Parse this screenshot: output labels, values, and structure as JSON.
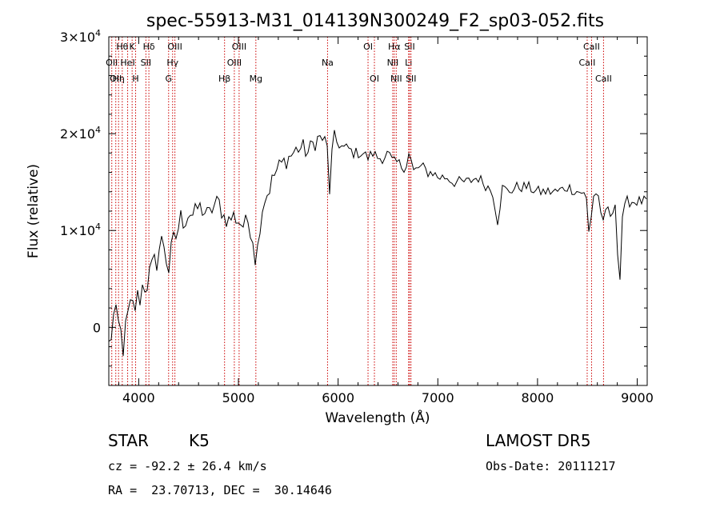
{
  "chart_data": {
    "type": "line",
    "title": "spec-55913-M31_014139N300249_F2_sp03-052.fits",
    "xlabel": "Wavelength (Å)",
    "ylabel": "Flux (relative)",
    "xlim": [
      3700,
      9100
    ],
    "ylim": [
      -6000,
      30000
    ],
    "x_ticks": [
      {
        "value": 4000,
        "label": "4000"
      },
      {
        "value": 5000,
        "label": "5000"
      },
      {
        "value": 6000,
        "label": "6000"
      },
      {
        "value": 7000,
        "label": "7000"
      },
      {
        "value": 8000,
        "label": "8000"
      },
      {
        "value": 9000,
        "label": "9000"
      }
    ],
    "y_ticks": [
      {
        "value": 0,
        "label": "0",
        "exp": ""
      },
      {
        "value": 10000,
        "label": "1×10",
        "exp": "4"
      },
      {
        "value": 20000,
        "label": "2×10",
        "exp": "4"
      },
      {
        "value": 30000,
        "label": "3×10",
        "exp": "4"
      }
    ],
    "line_color": "#000000",
    "marker_line_color": "#cc0000",
    "grid": false,
    "series": [
      {
        "x": [
          3700,
          3750,
          3800,
          3850,
          3900,
          3950,
          4000,
          4050,
          4100,
          4150,
          4200,
          4250,
          4300,
          4350,
          4400,
          4450,
          4500,
          4550,
          4600,
          4650,
          4700,
          4750,
          4800,
          4850,
          4900,
          4950,
          5000,
          5050,
          5100,
          5150,
          5180,
          5200,
          5250,
          5300,
          5350,
          5400,
          5450,
          5500,
          5550,
          5600,
          5650,
          5700,
          5750,
          5800,
          5850,
          5890,
          5910,
          5950,
          6000,
          6050,
          6100,
          6150,
          6200,
          6250,
          6300,
          6350,
          6400,
          6450,
          6500,
          6550,
          6600,
          6650,
          6700,
          6725,
          6735,
          6760,
          6800,
          6850,
          6900,
          6950,
          7000,
          7050,
          7100,
          7150,
          7200,
          7300,
          7400,
          7500,
          7550,
          7600,
          7650,
          7700,
          7800,
          7900,
          8000,
          8100,
          8200,
          8300,
          8400,
          8450,
          8500,
          8520,
          8550,
          8600,
          8620,
          8660,
          8700,
          8750,
          8780,
          8800,
          8820,
          8850,
          8900,
          8950,
          9000,
          9050
        ],
        "y": [
          -2000,
          1000,
          0,
          -2000,
          1500,
          2000,
          3000,
          4500,
          5000,
          6000,
          8000,
          9000,
          6000,
          8500,
          10500,
          11500,
          12000,
          11500,
          12500,
          12000,
          11500,
          12500,
          13000,
          11500,
          11000,
          11500,
          11000,
          10500,
          11000,
          9000,
          6000,
          9500,
          13000,
          14000,
          15500,
          16500,
          17000,
          17500,
          18000,
          18500,
          18500,
          18000,
          19000,
          19500,
          19500,
          18500,
          13500,
          19500,
          19000,
          18500,
          18500,
          18000,
          18000,
          18000,
          17500,
          18000,
          17500,
          17500,
          18000,
          17000,
          17000,
          16500,
          17000,
          19500,
          16500,
          16000,
          16500,
          16500,
          16000,
          16000,
          15500,
          15500,
          15500,
          15000,
          15000,
          15000,
          15500,
          14500,
          14000,
          11000,
          14500,
          14000,
          14500,
          14500,
          14000,
          14000,
          14000,
          14500,
          14000,
          14000,
          13000,
          8500,
          13500,
          14000,
          13000,
          10500,
          12500,
          11000,
          13000,
          9000,
          3000,
          11500,
          13000,
          13000,
          13000,
          13000
        ]
      }
    ],
    "line_markers": [
      {
        "x": 3730,
        "label": "OII",
        "row": 2
      },
      {
        "x": 3770,
        "label": "OII",
        "row": 3
      },
      {
        "x": 3798,
        "label": "Hη",
        "row": 3
      },
      {
        "x": 3835,
        "label": "Hθ",
        "row": 1
      },
      {
        "x": 3889,
        "label": "HeI",
        "row": 2
      },
      {
        "x": 3934,
        "label": "K",
        "row": 1
      },
      {
        "x": 3969,
        "label": "H",
        "row": 3
      },
      {
        "x": 4072,
        "label": "SII",
        "row": 2
      },
      {
        "x": 4102,
        "label": "Hδ",
        "row": 1
      },
      {
        "x": 4300,
        "label": "G",
        "row": 3
      },
      {
        "x": 4340,
        "label": "Hγ",
        "row": 2
      },
      {
        "x": 4363,
        "label": "OIII",
        "row": 1
      },
      {
        "x": 4861,
        "label": "Hβ",
        "row": 3
      },
      {
        "x": 4959,
        "label": "OIII",
        "row": 2
      },
      {
        "x": 5007,
        "label": "OIII",
        "row": 1
      },
      {
        "x": 5175,
        "label": "Mg",
        "row": 3
      },
      {
        "x": 5894,
        "label": "Na",
        "row": 2
      },
      {
        "x": 6300,
        "label": "OI",
        "row": 1
      },
      {
        "x": 6364,
        "label": "OI",
        "row": 3
      },
      {
        "x": 6548,
        "label": "NII",
        "row": 2
      },
      {
        "x": 6563,
        "label": "Hα",
        "row": 1
      },
      {
        "x": 6583,
        "label": "NII",
        "row": 3
      },
      {
        "x": 6707,
        "label": "Li",
        "row": 2
      },
      {
        "x": 6717,
        "label": "SII",
        "row": 1
      },
      {
        "x": 6731,
        "label": "SII",
        "row": 3
      },
      {
        "x": 8498,
        "label": "CaII",
        "row": 2
      },
      {
        "x": 8542,
        "label": "CaII",
        "row": 1
      },
      {
        "x": 8662,
        "label": "CaII",
        "row": 3
      }
    ]
  },
  "info": {
    "class_label": "STAR",
    "subclass_label": "K5",
    "survey_label": "LAMOST DR5",
    "cz_line": "cz = -92.2 ± 26.4 km/s",
    "obs_date_line": "Obs-Date: 20111217",
    "coords_line": "RA =  23.70713, DEC =  30.14646"
  }
}
